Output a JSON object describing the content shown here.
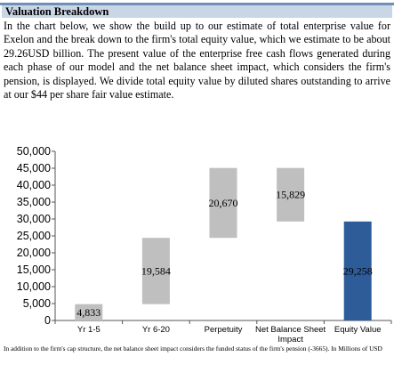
{
  "section": {
    "title": "Valuation Breakdown",
    "intro": "In the chart below, we show the build up to our estimate of total enterprise value for Exelon and the break down to the firm's total equity value, which we estimate to be about 29.26USD billion. The present value of the enterprise free cash flows generated during each phase of our model and the net balance sheet impact, which considers the firm's pension, is displayed. We divide total equity value by diluted shares outstanding to arrive at our  $44 per share fair value estimate."
  },
  "chart_data": {
    "type": "bar",
    "subtype": "waterfall",
    "categories": [
      "Yr 1-5",
      "Yr 6-20",
      "Perpetuity",
      "Net Balance Sheet Impact",
      "Equity Value"
    ],
    "bars": [
      {
        "label": "4,833",
        "base": 0,
        "top": 4833
      },
      {
        "label": "19,584",
        "base": 4833,
        "top": 24417
      },
      {
        "label": "20,670",
        "base": 24417,
        "top": 45087
      },
      {
        "label": "15,829",
        "base": 29258,
        "top": 45087
      },
      {
        "label": "29,258",
        "base": 0,
        "top": 29258
      }
    ],
    "ylim": [
      0,
      50000
    ],
    "yticks": [
      0,
      5000,
      10000,
      15000,
      20000,
      25000,
      30000,
      35000,
      40000,
      45000,
      50000
    ],
    "ytick_labels": [
      "0",
      "5,000",
      "10,000",
      "15,000",
      "20,000",
      "25,000",
      "30,000",
      "35,000",
      "40,000",
      "45,000",
      "50,000"
    ],
    "colors": {
      "bar": "#bfbfbf",
      "final_bar": "#2e5c99"
    },
    "grid": false,
    "legend": "none"
  },
  "footnote": "In addition to the firm's cap structure, the net balance sheet impact considers the funded status of the firm's pension (-3665). In Millions of USD"
}
